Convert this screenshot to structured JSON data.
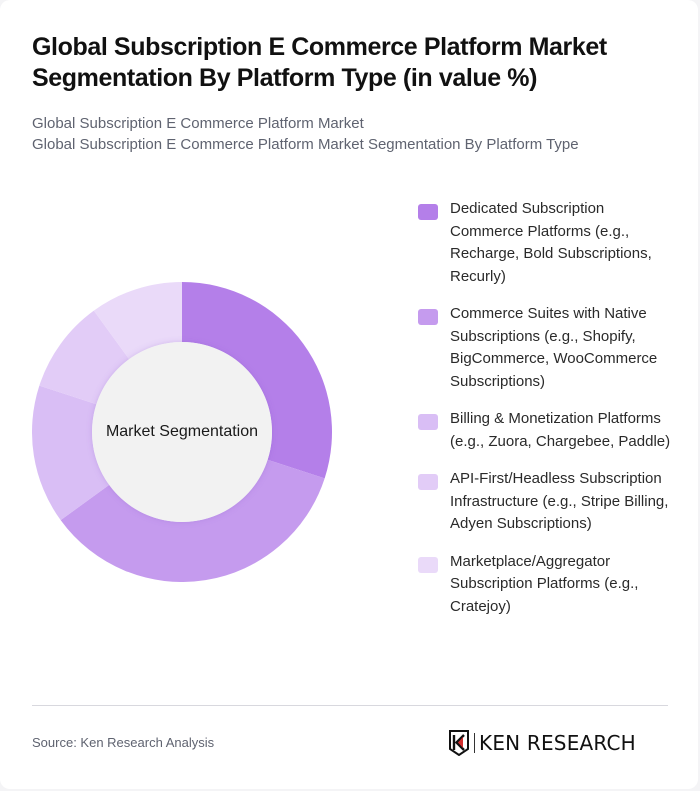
{
  "header": {
    "title": "Global Subscription E Commerce Platform Market Segmentation By Platform Type (in value %)",
    "subtitle_line1": "Global Subscription E Commerce Platform Market",
    "subtitle_line2": "Global Subscription E Commerce Platform Market Segmentation By Platform Type"
  },
  "chart": {
    "center_label": "Market Segmentation"
  },
  "legend": {
    "items": [
      {
        "label": "Dedicated Subscription Commerce Platforms (e.g., Recharge, Bold Subscriptions, Recurly)",
        "color": "#B47FE9"
      },
      {
        "label": "Commerce Suites with Native Subscriptions (e.g., Shopify, BigCommerce, WooCommerce Subscriptions)",
        "color": "#C59BEE"
      },
      {
        "label": "Billing & Monetization Platforms (e.g., Zuora, Chargebee, Paddle)",
        "color": "#D9BEF5"
      },
      {
        "label": "API-First/Headless Subscription Infrastructure (e.g., Stripe Billing, Adyen Subscriptions)",
        "color": "#E2CCF7"
      },
      {
        "label": "Marketplace/Aggregator Subscription Platforms (e.g., Cratejoy)",
        "color": "#EADAF9"
      }
    ]
  },
  "footer": {
    "source": "Source: Ken Research Analysis",
    "logo_text": "KEN RESEARCH"
  },
  "chart_data": {
    "type": "pie",
    "subtype": "donut",
    "title": "Global Subscription E Commerce Platform Market Segmentation By Platform Type (in value %)",
    "center_label": "Market Segmentation",
    "categories": [
      "Dedicated Subscription Commerce Platforms (e.g., Recharge, Bold Subscriptions, Recurly)",
      "Commerce Suites with Native Subscriptions (e.g., Shopify, BigCommerce, WooCommerce Subscriptions)",
      "Billing & Monetization Platforms (e.g., Zuora, Chargebee, Paddle)",
      "API-First/Headless Subscription Infrastructure (e.g., Stripe Billing, Adyen Subscriptions)",
      "Marketplace/Aggregator Subscription Platforms (e.g., Cratejoy)"
    ],
    "values": [
      30,
      35,
      15,
      10,
      10
    ],
    "colors": [
      "#B47FE9",
      "#C59BEE",
      "#D9BEF5",
      "#E2CCF7",
      "#EADAF9"
    ],
    "unit": "%",
    "legend_position": "right",
    "start_angle": "12 o'clock, clockwise"
  }
}
